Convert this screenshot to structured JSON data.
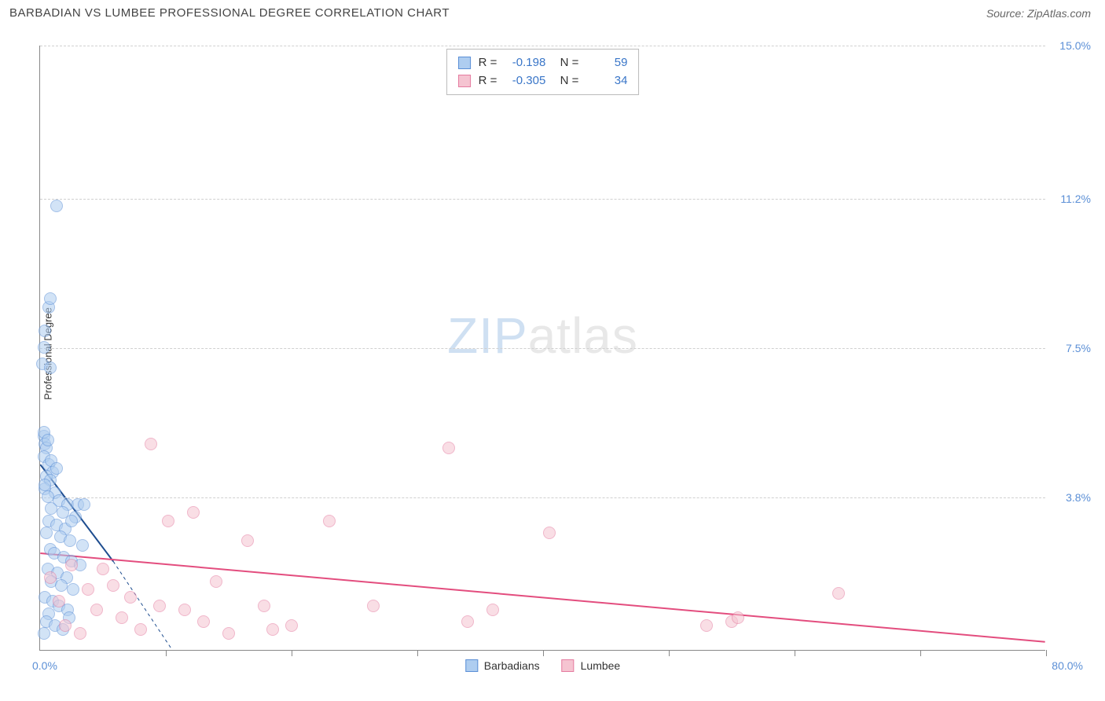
{
  "title": "BARBADIAN VS LUMBEE PROFESSIONAL DEGREE CORRELATION CHART",
  "source": "Source: ZipAtlas.com",
  "ylabel": "Professional Degree",
  "watermark_zip": "ZIP",
  "watermark_atlas": "atlas",
  "chart": {
    "type": "scatter",
    "background_color": "#ffffff",
    "grid_color": "#d0d0d0",
    "axis_color": "#888888",
    "xlim": [
      0,
      80
    ],
    "ylim": [
      0,
      15
    ],
    "x0_label": "0.0%",
    "xmax_label": "80.0%",
    "yticks": [
      {
        "v": 3.8,
        "label": "3.8%"
      },
      {
        "v": 7.5,
        "label": "7.5%"
      },
      {
        "v": 11.2,
        "label": "11.2%"
      },
      {
        "v": 15.0,
        "label": "15.0%"
      }
    ],
    "xticks": [
      10,
      20,
      30,
      40,
      50,
      60,
      70,
      80
    ],
    "marker_radius": 8,
    "marker_opacity": 0.55,
    "series": [
      {
        "name": "Barbadians",
        "fill": "#aecdf0",
        "stroke": "#5b8fd6",
        "R": "-0.198",
        "N": "59",
        "trend": {
          "color": "#1e4d8f",
          "width": 2,
          "x1": 0,
          "y1": 4.6,
          "x2": 5.8,
          "y2": 2.2,
          "dash_x2": 10.5,
          "dash_y2": 0
        },
        "points": [
          [
            0.3,
            5.3
          ],
          [
            0.4,
            5.1
          ],
          [
            0.5,
            5.0
          ],
          [
            0.3,
            4.8
          ],
          [
            0.7,
            4.6
          ],
          [
            1.0,
            4.4
          ],
          [
            0.5,
            4.3
          ],
          [
            0.8,
            4.2
          ],
          [
            0.4,
            4.0
          ],
          [
            1.2,
            3.9
          ],
          [
            0.6,
            3.8
          ],
          [
            1.5,
            3.7
          ],
          [
            2.2,
            3.6
          ],
          [
            0.9,
            3.5
          ],
          [
            1.8,
            3.4
          ],
          [
            2.8,
            3.3
          ],
          [
            0.7,
            3.2
          ],
          [
            1.3,
            3.1
          ],
          [
            2.0,
            3.0
          ],
          [
            0.5,
            2.9
          ],
          [
            1.6,
            2.8
          ],
          [
            2.4,
            2.7
          ],
          [
            3.0,
            3.6
          ],
          [
            0.8,
            2.5
          ],
          [
            1.1,
            2.4
          ],
          [
            1.9,
            2.3
          ],
          [
            2.5,
            2.2
          ],
          [
            3.2,
            2.1
          ],
          [
            0.6,
            2.0
          ],
          [
            1.4,
            1.9
          ],
          [
            2.1,
            1.8
          ],
          [
            0.9,
            1.7
          ],
          [
            1.7,
            1.6
          ],
          [
            2.6,
            1.5
          ],
          [
            0.4,
            1.3
          ],
          [
            1.0,
            1.2
          ],
          [
            1.5,
            1.1
          ],
          [
            2.2,
            1.0
          ],
          [
            0.7,
            0.9
          ],
          [
            3.4,
            2.6
          ],
          [
            0.5,
            0.7
          ],
          [
            1.2,
            0.6
          ],
          [
            1.8,
            0.5
          ],
          [
            2.3,
            0.8
          ],
          [
            0.3,
            0.4
          ],
          [
            0.3,
            5.4
          ],
          [
            0.6,
            5.2
          ],
          [
            0.9,
            4.7
          ],
          [
            1.3,
            4.5
          ],
          [
            0.4,
            4.1
          ],
          [
            0.2,
            7.1
          ],
          [
            0.3,
            7.5
          ],
          [
            0.4,
            7.9
          ],
          [
            0.7,
            8.5
          ],
          [
            0.8,
            8.7
          ],
          [
            0.8,
            7.0
          ],
          [
            1.3,
            11.0
          ],
          [
            2.5,
            3.2
          ],
          [
            3.5,
            3.6
          ]
        ]
      },
      {
        "name": "Lumbee",
        "fill": "#f5c4d1",
        "stroke": "#e57ca0",
        "R": "-0.305",
        "N": "34",
        "trend": {
          "color": "#e34d7e",
          "width": 2,
          "x1": 0,
          "y1": 2.4,
          "x2": 80,
          "y2": 0.2
        },
        "points": [
          [
            0.8,
            1.8
          ],
          [
            1.5,
            1.2
          ],
          [
            2.0,
            0.6
          ],
          [
            2.5,
            2.1
          ],
          [
            3.2,
            0.4
          ],
          [
            3.8,
            1.5
          ],
          [
            4.5,
            1.0
          ],
          [
            5.0,
            2.0
          ],
          [
            5.8,
            1.6
          ],
          [
            6.5,
            0.8
          ],
          [
            7.2,
            1.3
          ],
          [
            8.0,
            0.5
          ],
          [
            8.8,
            5.1
          ],
          [
            9.5,
            1.1
          ],
          [
            10.2,
            3.2
          ],
          [
            11.5,
            1.0
          ],
          [
            12.2,
            3.4
          ],
          [
            13.0,
            0.7
          ],
          [
            14.0,
            1.7
          ],
          [
            15.0,
            0.4
          ],
          [
            16.5,
            2.7
          ],
          [
            17.8,
            1.1
          ],
          [
            18.5,
            0.5
          ],
          [
            20.0,
            0.6
          ],
          [
            23.0,
            3.2
          ],
          [
            26.5,
            1.1
          ],
          [
            32.5,
            5.0
          ],
          [
            34.0,
            0.7
          ],
          [
            36.0,
            1.0
          ],
          [
            40.5,
            2.9
          ],
          [
            53.0,
            0.6
          ],
          [
            55.0,
            0.7
          ],
          [
            63.5,
            1.4
          ],
          [
            55.5,
            0.8
          ]
        ]
      }
    ]
  },
  "stats_box": {
    "border_color": "#bbbbbb",
    "label_color": "#333333",
    "value_color": "#3a76c8"
  },
  "legend": {
    "label_color": "#333333"
  }
}
